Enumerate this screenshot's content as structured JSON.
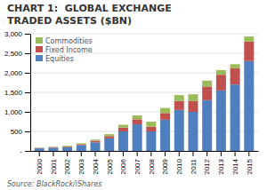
{
  "chart_data": {
    "type": "bar",
    "stacked": true,
    "title": "CHART 1:  GLOBAL EXCHANGE",
    "subtitle": "TRADED ASSETS ($BN)",
    "source": "Source: BlackRock/iShares",
    "categories": [
      "2000",
      "2001",
      "2002",
      "2003",
      "2004",
      "2005",
      "2006",
      "2007",
      "2008",
      "2009",
      "2010",
      "2011",
      "2012",
      "2013",
      "2014",
      "2015"
    ],
    "series": [
      {
        "name": "Equities",
        "color": "#4f7fbf",
        "values": [
          65,
          80,
          95,
          150,
          220,
          320,
          500,
          680,
          500,
          800,
          1050,
          1000,
          1300,
          1550,
          1700,
          2300
        ]
      },
      {
        "name": "Fixed Income",
        "color": "#c0504d",
        "values": [
          10,
          15,
          18,
          25,
          40,
          60,
          100,
          130,
          120,
          170,
          230,
          280,
          350,
          400,
          420,
          500
        ]
      },
      {
        "name": "Commodities",
        "color": "#9bbb59",
        "values": [
          10,
          12,
          15,
          20,
          30,
          50,
          70,
          100,
          130,
          130,
          150,
          170,
          150,
          120,
          100,
          130
        ]
      }
    ],
    "ylim": [
      0,
      3000
    ],
    "yticks": [
      {
        "value": 0,
        "label": "-"
      },
      500,
      {
        "value": 1000,
        "label": "1,000"
      },
      {
        "value": 1500,
        "label": "1,500"
      },
      {
        "value": 2000,
        "label": "2,000"
      },
      {
        "value": 2500,
        "label": "2,500"
      },
      {
        "value": 3000,
        "label": "3,000"
      }
    ],
    "grid": true,
    "legend": "upper left"
  }
}
